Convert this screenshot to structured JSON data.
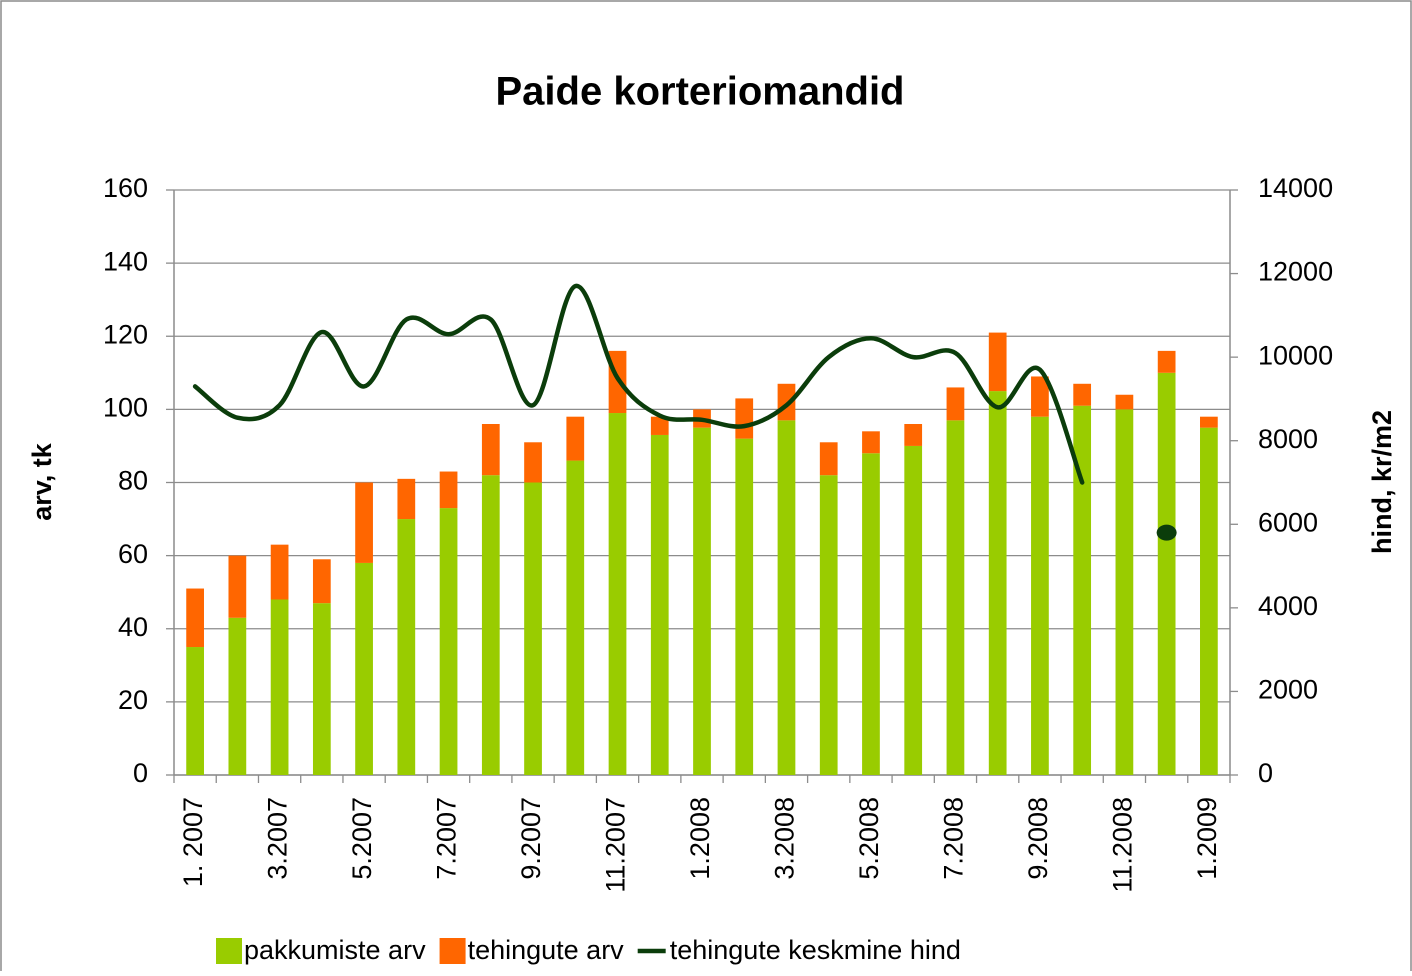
{
  "chart_data": {
    "type": "bar",
    "title": "Paide korteriomandid",
    "ylabel": "arv, tk",
    "y2label": "hind, kr/m2",
    "categories": [
      "1. 2007",
      null,
      "3.2007",
      null,
      "5.2007",
      null,
      "7.2007",
      null,
      "9.2007",
      null,
      "11.2007",
      null,
      "1.2008",
      null,
      "3.2008",
      null,
      "5.2008",
      null,
      "7.2008",
      null,
      "9.2008",
      null,
      "11.2008",
      null,
      "1.2009"
    ],
    "stacked": true,
    "series": [
      {
        "name": "pakkumiste arv",
        "type": "bar",
        "color": "#99cc00",
        "values": [
          35,
          43,
          48,
          47,
          58,
          70,
          73,
          82,
          80,
          86,
          99,
          93,
          95,
          92,
          97,
          82,
          88,
          90,
          97,
          105,
          98,
          101,
          100,
          110,
          95
        ]
      },
      {
        "name": "tehingute arv",
        "type": "bar",
        "color": "#ff6600",
        "values": [
          16,
          17,
          15,
          12,
          22,
          11,
          10,
          14,
          11,
          12,
          17,
          5,
          5,
          11,
          10,
          9,
          6,
          6,
          9,
          16,
          11,
          6,
          4,
          6,
          3
        ]
      },
      {
        "name": "tehingute keskmine hind",
        "type": "line",
        "axis": "y2",
        "color": "#0b3d0b",
        "values": [
          9300,
          8550,
          8850,
          10600,
          9300,
          10900,
          10550,
          10900,
          8850,
          11700,
          9500,
          8600,
          8500,
          8350,
          8850,
          10000,
          10450,
          10000,
          10100,
          8800,
          9700,
          7000,
          null,
          5800,
          null
        ]
      }
    ],
    "ylim": [
      0,
      160
    ],
    "yticks": [
      0,
      20,
      40,
      60,
      80,
      100,
      120,
      140,
      160
    ],
    "y2lim": [
      0,
      14000
    ],
    "y2ticks": [
      0,
      2000,
      4000,
      6000,
      8000,
      10000,
      12000,
      14000
    ],
    "grid": true,
    "legend": "bottom"
  }
}
